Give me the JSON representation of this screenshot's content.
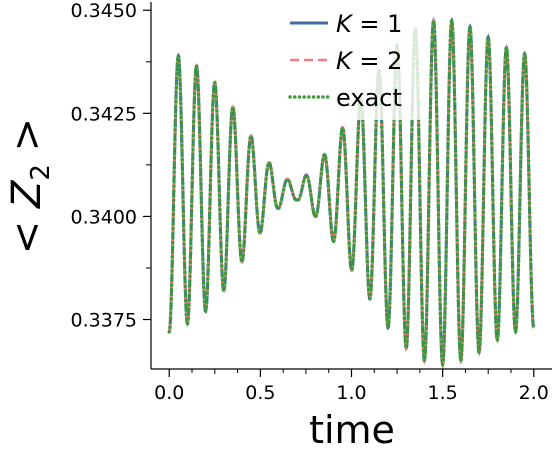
{
  "chart_data": {
    "type": "line",
    "xlabel": "time",
    "ylabel_parts": [
      "<",
      "Z",
      "2",
      ">"
    ],
    "xlim": [
      -0.1,
      2.1
    ],
    "ylim": [
      0.3363,
      0.3452
    ],
    "xticks": [
      0.0,
      0.5,
      1.0,
      1.5,
      2.0
    ],
    "xtick_labels": [
      "0.0",
      "0.5",
      "1.0",
      "1.5",
      "2.0"
    ],
    "yticks": [
      0.3375,
      0.34,
      0.3425,
      0.345
    ],
    "ytick_labels": [
      "0.3375",
      "0.3400",
      "0.3425",
      "0.3450"
    ],
    "legend_position": "top-right",
    "series": [
      {
        "name_math": "K",
        "name_rest": " = 1",
        "color": "#3b6ea8",
        "style": "solid"
      },
      {
        "name_math": "K",
        "name_rest": " = 2",
        "color": "#f08080",
        "style": "dashed"
      },
      {
        "name": "exact",
        "color": "#3a9d34",
        "style": "dotted"
      }
    ],
    "signal": {
      "baseline": 0.3406,
      "frequency_cycles_per_unit": 10.0,
      "amplitude_envelope": [
        {
          "x": 0.0,
          "a": 0.0034
        },
        {
          "x": 0.1,
          "a": 0.0032
        },
        {
          "x": 0.2,
          "a": 0.0029
        },
        {
          "x": 0.3,
          "a": 0.0024
        },
        {
          "x": 0.4,
          "a": 0.0017
        },
        {
          "x": 0.5,
          "a": 0.001
        },
        {
          "x": 0.6,
          "a": 0.0004
        },
        {
          "x": 0.7,
          "a": 0.0002
        },
        {
          "x": 0.8,
          "a": 0.0006
        },
        {
          "x": 0.9,
          "a": 0.0012
        },
        {
          "x": 1.0,
          "a": 0.0019
        },
        {
          "x": 1.1,
          "a": 0.0026
        },
        {
          "x": 1.2,
          "a": 0.0033
        },
        {
          "x": 1.3,
          "a": 0.0038
        },
        {
          "x": 1.4,
          "a": 0.0041
        },
        {
          "x": 1.5,
          "a": 0.0042
        },
        {
          "x": 1.6,
          "a": 0.0041
        },
        {
          "x": 1.7,
          "a": 0.0039
        },
        {
          "x": 1.8,
          "a": 0.0036
        },
        {
          "x": 1.9,
          "a": 0.0034
        },
        {
          "x": 2.0,
          "a": 0.0033
        }
      ],
      "x_start": 0.0,
      "x_end": 2.0
    }
  }
}
